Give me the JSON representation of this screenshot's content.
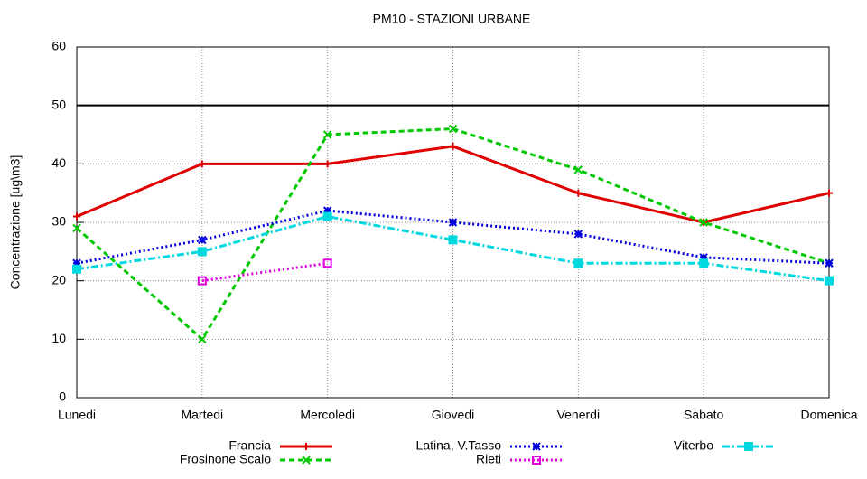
{
  "chart_data": {
    "type": "line",
    "title": "PM10 - STAZIONI URBANE",
    "y_label": "Concentrazione [ug\\m3]",
    "categories": [
      "Lunedi",
      "Martedi",
      "Mercoledi",
      "Giovedi",
      "Venerdi",
      "Sabato",
      "Domenica"
    ],
    "ylim": [
      0,
      60
    ],
    "yticks": [
      0,
      10,
      20,
      30,
      40,
      50,
      60
    ],
    "grid": true,
    "hline": 50,
    "legend": "bottom",
    "series": [
      {
        "name": "Francia",
        "color": "#e00000",
        "dash": "solid",
        "marker": "plus",
        "values": [
          31,
          40,
          40,
          43,
          35,
          30,
          35
        ]
      },
      {
        "name": "Frosinone Scalo",
        "color": "#00c800",
        "dash": "dashed",
        "marker": "cross",
        "values": [
          29,
          10,
          45,
          46,
          39,
          30,
          23
        ]
      },
      {
        "name": "Latina, V.Tasso",
        "color": "#0000e0",
        "dash": "dotted",
        "marker": "star",
        "values": [
          23,
          27,
          32,
          30,
          28,
          24,
          23
        ]
      },
      {
        "name": "Rieti",
        "color": "#e000e0",
        "dash": "dotted",
        "marker": "square-open",
        "values": [
          null,
          20,
          23,
          null,
          null,
          null,
          null
        ]
      },
      {
        "name": "Viterbo",
        "color": "#00d8e0",
        "dash": "dashdot",
        "marker": "square",
        "values": [
          22,
          25,
          31,
          27,
          23,
          23,
          20
        ]
      }
    ]
  }
}
